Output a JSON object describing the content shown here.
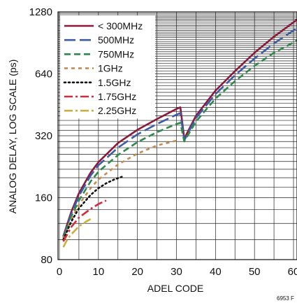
{
  "chart_data": {
    "type": "line",
    "title": "",
    "xlabel": "ADEL CODE",
    "ylabel": "ANALOG DELAY, LOG SCALE (ps)",
    "xlim": [
      0,
      60
    ],
    "ylim": [
      80,
      1280
    ],
    "yscale": "log2",
    "x_ticks": [
      "0",
      "10",
      "20",
      "30",
      "40",
      "50",
      "60"
    ],
    "y_ticks": [
      "80",
      "160",
      "320",
      "640",
      "1280"
    ],
    "grid": true,
    "legend_position": "top-left",
    "figure_id": "6953 F",
    "series": [
      {
        "name": "< 300MHz",
        "color": "#8b1a3a",
        "dash": "solid",
        "x": [
          1,
          3,
          5,
          8,
          10,
          15,
          20,
          25,
          30,
          31,
          32,
          35,
          40,
          45,
          50,
          55,
          60,
          61
        ],
        "y": [
          104,
          136,
          168,
          212,
          238,
          295,
          342,
          386,
          432,
          440,
          310,
          400,
          530,
          660,
          810,
          970,
          1140,
          1180
        ]
      },
      {
        "name": "500MHz",
        "color": "#3d5ca8",
        "dash": "longdash",
        "x": [
          1,
          3,
          5,
          8,
          10,
          15,
          20,
          25,
          30,
          31,
          32,
          35,
          40,
          45,
          50,
          55,
          60,
          61
        ],
        "y": [
          103,
          133,
          163,
          205,
          230,
          280,
          325,
          365,
          405,
          412,
          304,
          390,
          510,
          630,
          760,
          900,
          1040,
          1070
        ]
      },
      {
        "name": "750MHz",
        "color": "#2e8a4a",
        "dash": "dashed",
        "x": [
          1,
          3,
          5,
          8,
          10,
          15,
          20,
          25,
          30,
          31,
          32,
          35,
          40,
          45,
          50,
          55,
          60,
          61
        ],
        "y": [
          102,
          129,
          155,
          192,
          214,
          258,
          298,
          333,
          365,
          370,
          300,
          375,
          485,
          590,
          700,
          810,
          910,
          935
        ]
      },
      {
        "name": "1GHz",
        "color": "#c98a4e",
        "dash": "short",
        "x": [
          1,
          3,
          5,
          8,
          10,
          15,
          20,
          25,
          30
        ],
        "y": [
          101,
          125,
          148,
          178,
          196,
          232,
          262,
          287,
          303
        ]
      },
      {
        "name": "1.5GHz",
        "color": "#111111",
        "dash": "dotted",
        "x": [
          1,
          3,
          5,
          8,
          10,
          12,
          14,
          16
        ],
        "y": [
          100,
          122,
          142,
          165,
          178,
          188,
          196,
          202
        ]
      },
      {
        "name": "1.75GHz",
        "color": "#d62a3c",
        "dash": "dashdot",
        "x": [
          1,
          3,
          5,
          8,
          10,
          12
        ],
        "y": [
          98,
          115,
          128,
          141,
          149,
          155
        ]
      },
      {
        "name": "2.25GHz",
        "color": "#c9b03c",
        "dash": "dashdot",
        "x": [
          1,
          2,
          3,
          5,
          7,
          8
        ],
        "y": [
          92,
          100,
          106,
          116,
          123,
          126
        ]
      }
    ]
  }
}
